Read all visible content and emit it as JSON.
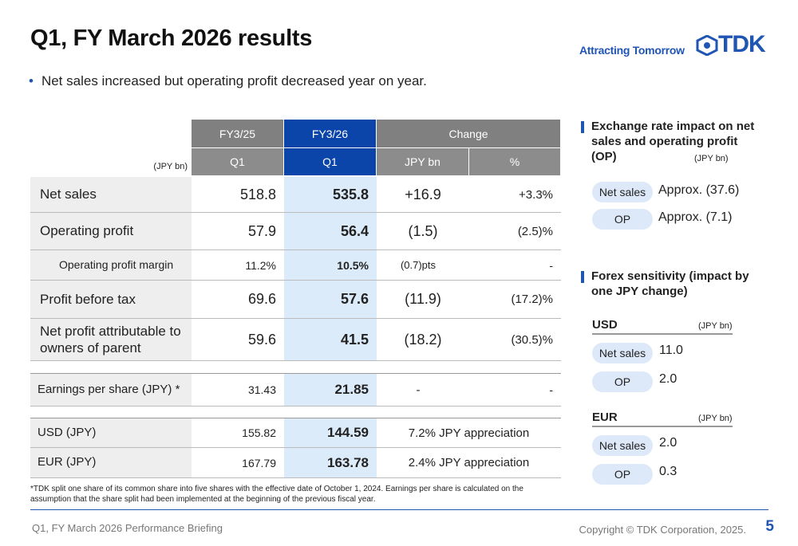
{
  "header": {
    "title": "Q1, FY March 2026 results",
    "tagline": "Attracting Tomorrow",
    "logo": "TDK"
  },
  "bullet": "Net sales increased but operating profit decreased year on year.",
  "table": {
    "unit": "(JPY bn)",
    "header_top": [
      "FY3/25",
      "FY3/26",
      "Change"
    ],
    "header_sub": [
      "Q1",
      "Q1",
      "JPY bn",
      "%"
    ],
    "rows": [
      [
        "Net sales",
        "518.8",
        "535.8",
        "+16.9",
        "+3.3%"
      ],
      [
        "Operating profit",
        "57.9",
        "56.4",
        "(1.5)",
        "(2.5)%"
      ],
      [
        "Operating profit margin",
        "11.2%",
        "10.5%",
        "(0.7)pts",
        "-"
      ],
      [
        "Profit before tax",
        "69.6",
        "57.6",
        "(11.9)",
        "(17.2)%"
      ],
      [
        "Net profit attributable to owners of parent",
        "59.6",
        "41.5",
        "(18.2)",
        "(30.5)%"
      ]
    ],
    "eps": [
      "Earnings per share (JPY) *",
      "31.43",
      "21.85",
      "-",
      "-"
    ],
    "fx": [
      [
        "USD (JPY)",
        "155.82",
        "144.59",
        "7.2% JPY appreciation"
      ],
      [
        "EUR (JPY)",
        "167.79",
        "163.78",
        "2.4% JPY appreciation"
      ]
    ]
  },
  "footnote": "*TDK split one share of its common share into five shares with the effective date of October 1, 2024. Earnings per share is calculated on the assumption that the share split had been implemented at the beginning of the previous fiscal year.",
  "side": {
    "exchange_title": "Exchange rate impact on net sales and operating profit (OP)",
    "exchange_unit": "(JPY bn)",
    "exchange_items": [
      {
        "label": "Net sales",
        "value": "Approx. (37.6)"
      },
      {
        "label": "OP",
        "value": "Approx. (7.1)"
      }
    ],
    "forex_title": "Forex sensitivity (impact by one JPY change)",
    "currencies": [
      {
        "name": "USD",
        "unit": "(JPY bn)",
        "items": [
          {
            "label": "Net sales",
            "value": "11.0"
          },
          {
            "label": "OP",
            "value": "2.0"
          }
        ]
      },
      {
        "name": "EUR",
        "unit": "(JPY bn)",
        "items": [
          {
            "label": "Net sales",
            "value": "2.0"
          },
          {
            "label": "OP",
            "value": "0.3"
          }
        ]
      }
    ]
  },
  "footer": {
    "left": "Q1, FY March 2026 Performance Briefing",
    "copyright": "Copyright © TDK Corporation, 2025.",
    "page": "5"
  }
}
